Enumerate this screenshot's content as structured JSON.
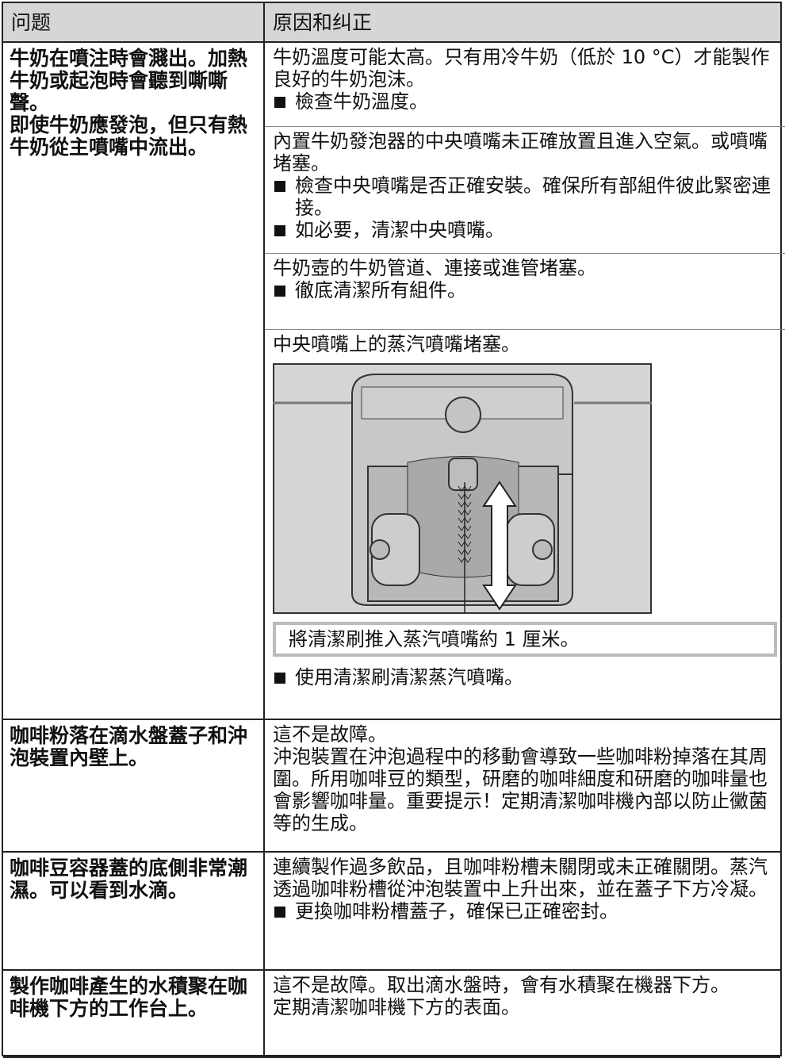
{
  "table": {
    "headers": [
      "问题",
      "原因和纠正"
    ],
    "rows": [
      {
        "problem": [
          "牛奶在噴注時會濺出。加熱牛奶或起泡時會聽到嘶嘶聲。",
          "即使牛奶應發泡，但只有熱牛奶從主噴嘴中流出。"
        ],
        "causes": [
          {
            "text": [
              "牛奶溫度可能太高。只有用冷牛奶（低於 10 °C）才能製作良好的牛奶泡沫。"
            ],
            "bullets": [
              "檢查牛奶溫度。"
            ]
          },
          {
            "text": [
              "內置牛奶發泡器的中央噴嘴未正確放置且進入空氣。或噴嘴堵塞。"
            ],
            "bullets": [
              "檢查中央噴嘴是否正確安裝。確保所有部組件彼此緊密連接。",
              "如必要，清潔中央噴嘴。"
            ]
          },
          {
            "text": [
              "牛奶壺的牛奶管道、連接或進管堵塞。"
            ],
            "bullets": [
              "徹底清潔所有組件。"
            ]
          },
          {
            "text": [
              "中央噴嘴上的蒸汽噴嘴堵塞。"
            ],
            "caption": "將清潔刷推入蒸汽噴嘴約 1 厘米。",
            "bullets": [
              "使用清潔刷清潔蒸汽噴嘴。"
            ]
          }
        ]
      },
      {
        "problem": [
          "咖啡粉落在滴水盤蓋子和沖泡裝置內壁上。"
        ],
        "causes": [
          {
            "text": [
              "這不是故障。",
              "沖泡裝置在沖泡過程中的移動會導致一些咖啡粉掉落在其周圍。所用咖啡豆的類型，研磨的咖啡細度和研磨的咖啡量也會影響咖啡量。重要提示！定期清潔咖啡機內部以防止黴菌等的生成。"
            ]
          }
        ]
      },
      {
        "problem": [
          "咖啡豆容器蓋的底側非常潮濕。可以看到水滴。"
        ],
        "causes": [
          {
            "text": [
              "連續製作過多飲品，且咖啡粉槽未關閉或未正確關閉。蒸汽透過咖啡粉槽從沖泡裝置中上升出來，並在蓋子下方冷凝。"
            ],
            "bullets": [
              "更換咖啡粉槽蓋子，確保已正確密封。"
            ]
          }
        ]
      },
      {
        "problem": [
          "製作咖啡產生的水積聚在咖啡機下方的工作台上。"
        ],
        "causes": [
          {
            "text": [
              "這不是故障。取出滴水盤時，會有水積聚在機器下方。",
              "定期清潔咖啡機下方的表面。"
            ]
          }
        ]
      }
    ]
  }
}
